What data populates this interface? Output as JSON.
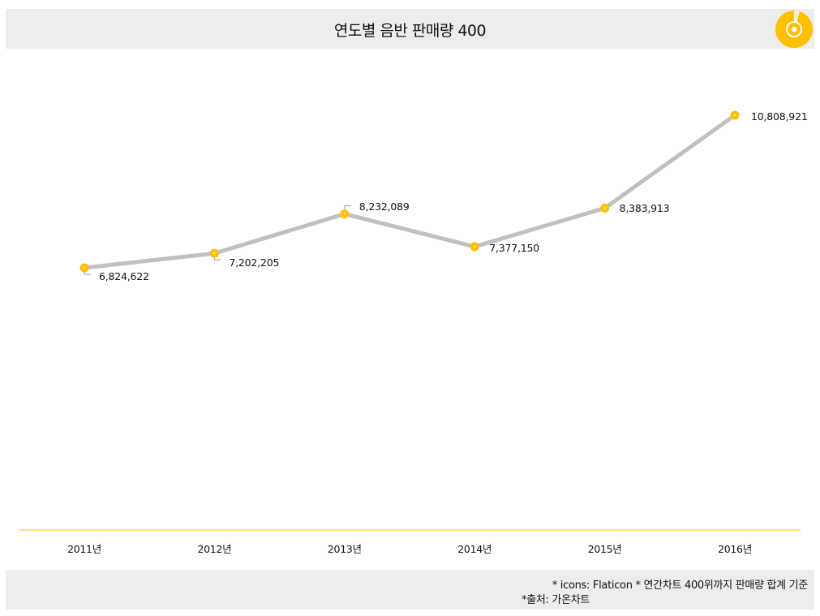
{
  "header": {
    "title": "연도별 음반 판매량 400",
    "icon": "cd-disc-icon",
    "background": "#ededed"
  },
  "footer": {
    "note_line1": "* icons: Flaticon * 연간차트 400위까지 판매량 합계 기준",
    "note_line2": "*출처: 가온차트",
    "background": "#ededed"
  },
  "colors": {
    "line": "#c0c0c0",
    "marker": "#ffc000",
    "axis": "#ffc000",
    "accent": "#ffc000"
  },
  "chart_data": {
    "type": "line",
    "title": "연도별 음반 판매량 400",
    "categories": [
      "2011년",
      "2012년",
      "2013년",
      "2014년",
      "2015년",
      "2016년"
    ],
    "series": [
      {
        "name": "음반 판매량",
        "values": [
          6824622,
          7202205,
          8232089,
          7377150,
          8383913,
          10808921
        ]
      }
    ],
    "data_labels": [
      "6,824,622",
      "7,202,205",
      "8,232,089",
      "7,377,150",
      "8,383,913",
      "10,808,921"
    ],
    "xlabel": "",
    "ylabel": "",
    "grid": false,
    "legend": "none",
    "y_axis_visible": false
  }
}
